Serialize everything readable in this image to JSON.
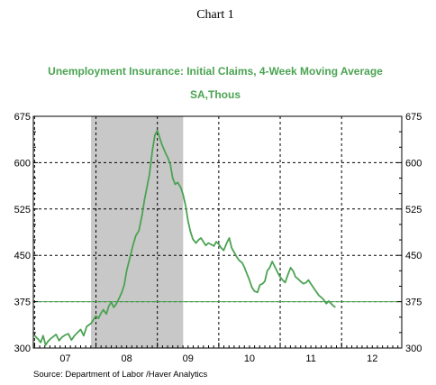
{
  "header": {
    "chart_number": "Chart 1"
  },
  "source_note": "Source:  Department of Labor /Haver Analytics",
  "colors": {
    "series": "#4ba352",
    "title": "#4ba352",
    "recession_shading": "#c8c8c8",
    "grid": "#000000",
    "reference_line": "#4ba352"
  },
  "chart_data": {
    "type": "line",
    "title": "Unemployment Insurance: Initial Claims, 4-Week Moving Average",
    "subtitle": "SA,Thous",
    "x_tick_labels": [
      "07",
      "08",
      "09",
      "10",
      "11",
      "12"
    ],
    "x_tick_positions": [
      2007.5,
      2008.5,
      2009.5,
      2010.5,
      2011.5,
      2012.5
    ],
    "xlim": [
      2006.98,
      2012.98
    ],
    "ylim": [
      300,
      675
    ],
    "y_ticks": [
      300,
      375,
      450,
      525,
      600,
      675
    ],
    "grid": "dashed vertical lines at year boundaries and dashed horizontal lines at each y tick",
    "right_axis": "mirrors left axis",
    "recession_shading": {
      "start": 2007.92,
      "end": 2009.42
    },
    "reference_line": 375,
    "series": [
      {
        "x": [
          2007.0,
          2007.06,
          2007.1,
          2007.14,
          2007.18,
          2007.22,
          2007.26,
          2007.3,
          2007.35,
          2007.4,
          2007.45,
          2007.5,
          2007.55,
          2007.6,
          2007.65,
          2007.7,
          2007.75,
          2007.8,
          2007.85,
          2007.88,
          2007.92,
          2007.96,
          2008.0,
          2008.04,
          2008.08,
          2008.12,
          2008.17,
          2008.21,
          2008.25,
          2008.29,
          2008.33,
          2008.38,
          2008.42,
          2008.46,
          2008.5,
          2008.55,
          2008.6,
          2008.65,
          2008.7,
          2008.75,
          2008.79,
          2008.83,
          2008.87,
          2008.92,
          2008.96,
          2009.0,
          2009.04,
          2009.08,
          2009.13,
          2009.17,
          2009.21,
          2009.25,
          2009.29,
          2009.33,
          2009.38,
          2009.42,
          2009.46,
          2009.5,
          2009.54,
          2009.58,
          2009.63,
          2009.67,
          2009.71,
          2009.75,
          2009.79,
          2009.83,
          2009.87,
          2009.92,
          2009.96,
          2010.0,
          2010.04,
          2010.08,
          2010.13,
          2010.17,
          2010.21,
          2010.25,
          2010.29,
          2010.33,
          2010.38,
          2010.42,
          2010.46,
          2010.5,
          2010.54,
          2010.58,
          2010.63,
          2010.67,
          2010.71,
          2010.75,
          2010.79,
          2010.83,
          2010.87,
          2010.92,
          2010.96,
          2011.0,
          2011.04,
          2011.08,
          2011.13,
          2011.17,
          2011.21,
          2011.25,
          2011.29,
          2011.33,
          2011.38,
          2011.42,
          2011.46,
          2011.5,
          2011.54,
          2011.58,
          2011.63,
          2011.67,
          2011.71,
          2011.75,
          2011.79,
          2011.83,
          2011.87,
          2011.9
        ],
        "values": [
          320,
          314,
          309,
          320,
          305,
          311,
          315,
          318,
          322,
          312,
          318,
          321,
          323,
          313,
          320,
          325,
          330,
          320,
          335,
          337,
          340,
          346,
          352,
          348,
          356,
          362,
          355,
          368,
          374,
          366,
          371,
          381,
          390,
          402,
          425,
          445,
          465,
          482,
          490,
          515,
          540,
          560,
          580,
          620,
          645,
          652,
          640,
          628,
          616,
          608,
          598,
          575,
          565,
          568,
          560,
          548,
          530,
          505,
          488,
          476,
          470,
          475,
          478,
          472,
          466,
          470,
          468,
          465,
          472,
          468,
          462,
          458,
          470,
          478,
          462,
          455,
          448,
          442,
          438,
          430,
          420,
          410,
          398,
          392,
          390,
          402,
          404,
          408,
          425,
          430,
          440,
          430,
          422,
          415,
          410,
          406,
          420,
          430,
          425,
          415,
          412,
          408,
          404,
          406,
          410,
          404,
          398,
          392,
          385,
          382,
          378,
          372,
          376,
          372,
          368,
          366
        ]
      }
    ]
  }
}
